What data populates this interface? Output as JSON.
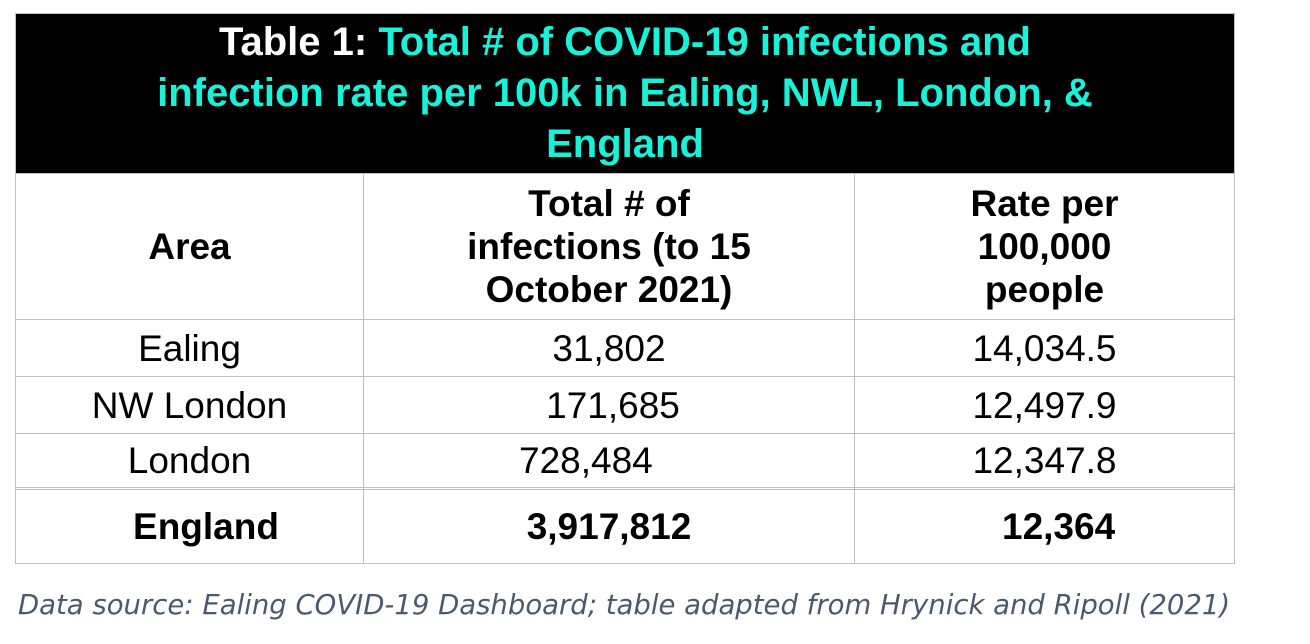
{
  "table": {
    "title_prefix": "Table 1: ",
    "title_line1": "Total # of COVID-19 infections and",
    "title_line2": "infection rate per 100k in Ealing, NWL, London, &",
    "title_line3": "England",
    "title_color": "#19f2da",
    "headers": {
      "area": "Area",
      "infections_line1": "Total # of",
      "infections_line2": "infections (to 15",
      "infections_line3": "October 2021)",
      "rate_line1": "Rate per",
      "rate_line2": "100,000",
      "rate_line3": "people"
    },
    "rows": [
      {
        "area": "Ealing",
        "infections": "31,802",
        "rate": "14,034.5"
      },
      {
        "area": "NW London",
        "infections": "171,685",
        "rate": "12,497.9"
      },
      {
        "area": "London",
        "infections": "728,484",
        "rate": "12,347.8"
      },
      {
        "area": "England",
        "infections": "3,917,812",
        "rate": "12,364"
      }
    ]
  },
  "caption": "Data source: Ealing COVID-19 Dashboard; table adapted from Hrynick and Ripoll (2021)"
}
